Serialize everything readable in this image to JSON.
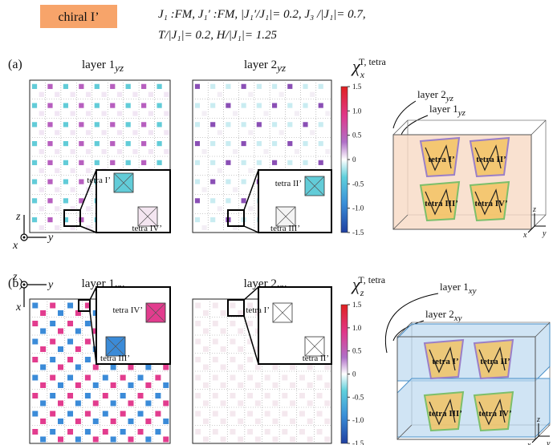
{
  "header": {
    "tag": "chiral I’",
    "params": [
      "J₁ :FM,  J₁′ :FM,    |J₁′/J₁|= 0.2,  J₃ /|J₁|= 0.7,",
      "T/|J₁|= 0.2,    H/|J₁|= 1.25"
    ]
  },
  "panel_a": {
    "label": "(a)",
    "layers": [
      {
        "text": "layer 1",
        "sub": "yz"
      },
      {
        "text": "layer 2",
        "sub": "yz"
      }
    ],
    "colorbar": {
      "symbol": "χ",
      "sub": "x",
      "sup": "T, tetra",
      "ticks": [
        "1.5",
        "1.0",
        "0.5",
        "0",
        "-0.5",
        "-1.0",
        "-1.5"
      ]
    },
    "insets": [
      [
        "tetra I’",
        "tetra IV’"
      ],
      [
        "tetra II’",
        "tetra III’"
      ]
    ],
    "axes": {
      "vertical": "z",
      "horizontal": "y",
      "out": "x"
    },
    "diagram": {
      "layers": [
        {
          "text": "layer 2",
          "sub": "yz"
        },
        {
          "text": "layer 1",
          "sub": "yz"
        }
      ],
      "tetras": [
        "tetra I’",
        "tetra II’",
        "tetra III’",
        "tetra IV’"
      ],
      "axes": [
        "z",
        "x",
        "y"
      ]
    }
  },
  "panel_b": {
    "label": "(b)",
    "layers": [
      {
        "text": "layer 1",
        "sub": "xy"
      },
      {
        "text": "layer 2",
        "sub": "xy"
      }
    ],
    "colorbar": {
      "symbol": "χ",
      "sub": "z",
      "sup": "T, tetra",
      "ticks": [
        "1.5",
        "1.0",
        "0.5",
        "0",
        "-0.5",
        "-1.0",
        "-1.5"
      ]
    },
    "insets": [
      [
        "tetra IV’",
        "tetra III’"
      ],
      [
        "tetra I’",
        "tetra II’"
      ]
    ],
    "axes": {
      "vertical": "x",
      "horizontal": "y",
      "out": "z"
    },
    "diagram": {
      "layers": [
        {
          "text": "layer 1",
          "sub": "xy"
        },
        {
          "text": "layer 2",
          "sub": "xy"
        }
      ],
      "tetras": [
        "tetra I’",
        "tetra II’",
        "tetra III’",
        "tetra IV’"
      ],
      "axes": [
        "z",
        "x",
        "y"
      ]
    }
  }
}
